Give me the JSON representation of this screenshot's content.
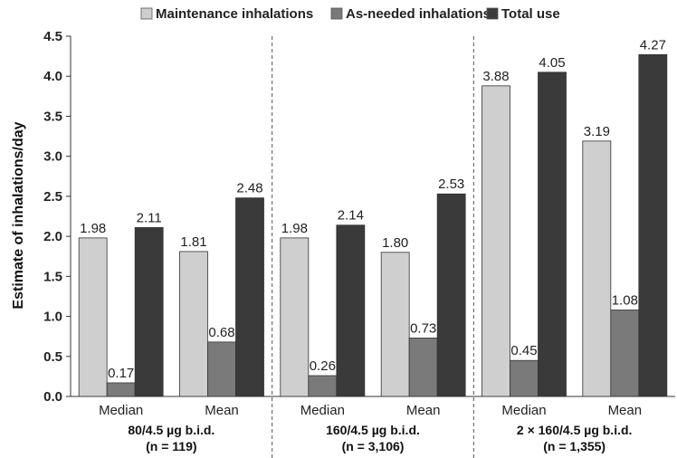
{
  "chart_data": {
    "type": "bar",
    "ylabel": "Estimate of inhalations/day",
    "ylim": [
      0,
      4.5
    ],
    "yticks": [
      "0.0",
      "0.5",
      "1.0",
      "1.5",
      "2.0",
      "2.5",
      "3.0",
      "3.5",
      "4.0",
      "4.5"
    ],
    "legend_position": "top",
    "series": [
      {
        "name": "Maintenance inhalations",
        "color": "#cfcfcf"
      },
      {
        "name": "As-needed inhalations",
        "color": "#7a7a7a"
      },
      {
        "name": "Total use",
        "color": "#3a3a3a"
      }
    ],
    "groups": [
      {
        "line1": "80/4.5 µg b.i.d.",
        "line2": "(n = 119)",
        "categories": [
          {
            "label": "Median",
            "values": [
              1.98,
              0.17,
              2.11
            ],
            "labels": [
              "1.98",
              "0.17",
              "2.11"
            ]
          },
          {
            "label": "Mean",
            "values": [
              1.81,
              0.68,
              2.48
            ],
            "labels": [
              "1.81",
              "0.68",
              "2.48"
            ]
          }
        ]
      },
      {
        "line1": "160/4.5 µg b.i.d.",
        "line2": "(n = 3,106)",
        "categories": [
          {
            "label": "Median",
            "values": [
              1.98,
              0.26,
              2.14
            ],
            "labels": [
              "1.98",
              "0.26",
              "2.14"
            ]
          },
          {
            "label": "Mean",
            "values": [
              1.8,
              0.73,
              2.53
            ],
            "labels": [
              "1.80",
              "0.73",
              "2.53"
            ]
          }
        ]
      },
      {
        "line1": "2 × 160/4.5 µg b.i.d.",
        "line2": "(n = 1,355)",
        "categories": [
          {
            "label": "Median",
            "values": [
              3.88,
              0.45,
              4.05
            ],
            "labels": [
              "3.88",
              "0.45",
              "4.05"
            ]
          },
          {
            "label": "Mean",
            "values": [
              3.19,
              1.08,
              4.27
            ],
            "labels": [
              "3.19",
              "1.08",
              "4.27"
            ]
          }
        ]
      }
    ]
  }
}
